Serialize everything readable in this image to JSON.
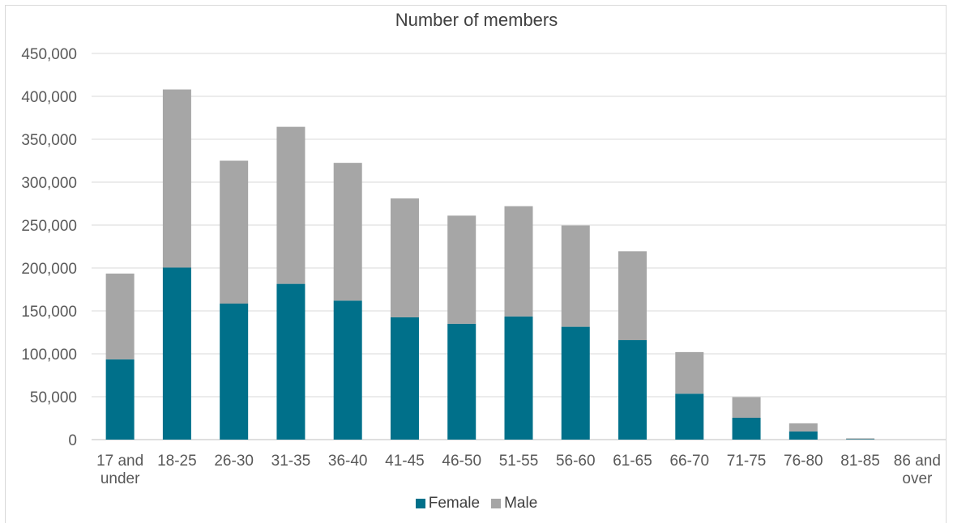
{
  "chart_data": {
    "type": "bar",
    "stacked": true,
    "title": "Number of members",
    "categories": [
      [
        "17 and",
        "under"
      ],
      [
        "18-25"
      ],
      [
        "26-30"
      ],
      [
        "31-35"
      ],
      [
        "36-40"
      ],
      [
        "41-45"
      ],
      [
        "46-50"
      ],
      [
        "51-55"
      ],
      [
        "56-60"
      ],
      [
        "61-65"
      ],
      [
        "66-70"
      ],
      [
        "71-75"
      ],
      [
        "76-80"
      ],
      [
        "81-85"
      ],
      [
        "86 and",
        "over"
      ]
    ],
    "series": [
      {
        "name": "Female",
        "color": "#00708a",
        "values": [
          93500,
          200500,
          158500,
          181500,
          162000,
          142500,
          135000,
          143500,
          131500,
          116000,
          53500,
          25500,
          9500,
          500,
          0
        ]
      },
      {
        "name": "Male",
        "color": "#a6a6a6",
        "values": [
          100000,
          207500,
          166500,
          183000,
          160500,
          138500,
          126000,
          128500,
          118000,
          103500,
          48500,
          24000,
          9500,
          1000,
          0
        ]
      }
    ],
    "ylim": [
      0,
      450000
    ],
    "yticks": [
      0,
      50000,
      100000,
      150000,
      200000,
      250000,
      300000,
      350000,
      400000,
      450000
    ],
    "ytick_labels": [
      "0",
      "50,000",
      "100,000",
      "150,000",
      "200,000",
      "250,000",
      "300,000",
      "350,000",
      "400,000",
      "450,000"
    ],
    "grid": true,
    "legend_position": "bottom"
  }
}
